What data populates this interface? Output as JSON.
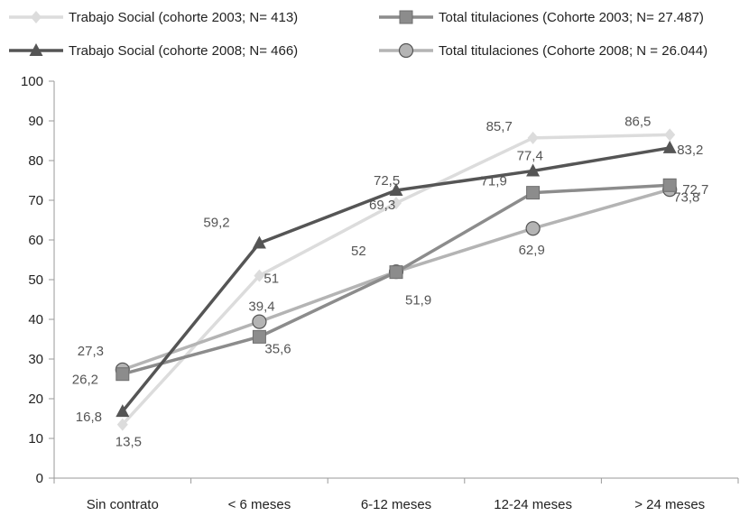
{
  "chart_data": {
    "type": "line",
    "categories": [
      "Sin contrato",
      "< 6 meses",
      "6-12 meses",
      "12-24 meses",
      "> 24 meses"
    ],
    "ylim": [
      0,
      100
    ],
    "yticks": [
      "0",
      "10",
      "20",
      "30",
      "40",
      "50",
      "60",
      "70",
      "80",
      "90",
      "100"
    ],
    "grid": false,
    "legend_position": "top",
    "series": [
      {
        "name": "Trabajo Social (cohorte 2003; N= 413)",
        "values": [
          13.5,
          51,
          69.3,
          85.7,
          86.5
        ],
        "labels": [
          "13,5",
          "51",
          "69,3",
          "85,7",
          "86,5"
        ],
        "color": "#dcdcdc",
        "marker": "diamond"
      },
      {
        "name": "Total  titulaciones (Cohorte 2003; N= 27.487)",
        "values": [
          26.2,
          35.6,
          51.9,
          71.9,
          73.8
        ],
        "labels": [
          "26,2",
          "35,6",
          "51,9",
          "71,9",
          "73,8"
        ],
        "color": "#8c8c8c",
        "marker": "square"
      },
      {
        "name": "Trabajo Social (cohorte 2008; N= 466)",
        "values": [
          16.8,
          59.2,
          72.5,
          77.4,
          83.2
        ],
        "labels": [
          "16,8",
          "59,2",
          "72,5",
          "77,4",
          "83,2"
        ],
        "color": "#555555",
        "marker": "triangle"
      },
      {
        "name": "Total titulaciones (Cohorte 2008; N = 26.044)",
        "values": [
          27.3,
          39.4,
          52,
          62.9,
          72.7
        ],
        "labels": [
          "27,3",
          "39,4",
          "52",
          "62,9",
          "72,7"
        ],
        "color": "#b4b4b4",
        "marker": "circle"
      }
    ]
  }
}
